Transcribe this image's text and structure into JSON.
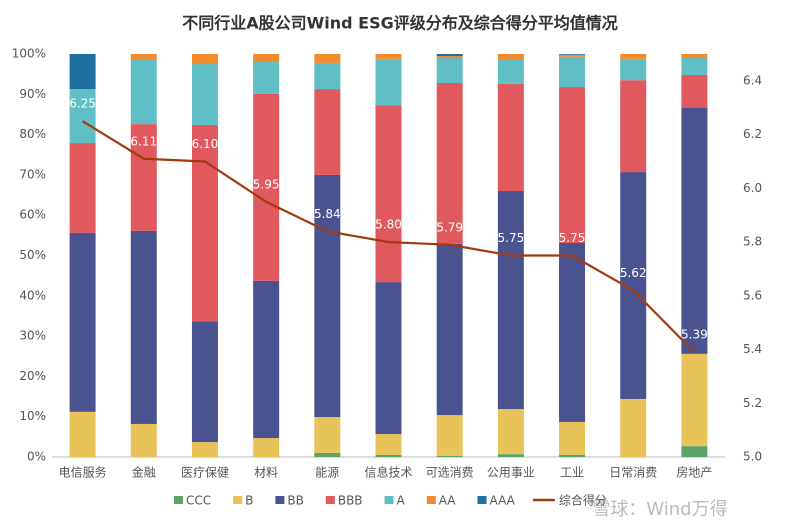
{
  "chart_data": {
    "type": "stacked-bar-line",
    "title": "不同行业A股公司Wind ESG评级分布及综合得分平均值情况",
    "categories": [
      "电信服务",
      "金融",
      "医疗保健",
      "材料",
      "能源",
      "信息技术",
      "可选消费",
      "公用事业",
      "工业",
      "日常消费",
      "房地产"
    ],
    "series": [
      {
        "name": "CCC",
        "color": "#5aa469",
        "values": [
          0,
          0,
          0,
          0,
          1.0,
          0.5,
          0.3,
          0.7,
          0.5,
          0,
          2.7
        ]
      },
      {
        "name": "B",
        "color": "#e8c35a",
        "values": [
          11.2,
          8.2,
          3.7,
          4.7,
          8.9,
          5.2,
          10.1,
          11.2,
          8.2,
          14.4,
          22.9
        ]
      },
      {
        "name": "BB",
        "color": "#4a538f",
        "values": [
          44.4,
          47.9,
          30.0,
          39.0,
          60.1,
          37.7,
          42.5,
          54.1,
          44.4,
          56.3,
          61.0
        ]
      },
      {
        "name": "BBB",
        "color": "#e0595d",
        "values": [
          22.3,
          26.5,
          48.7,
          46.4,
          21.3,
          43.9,
          39.9,
          26.6,
          38.7,
          22.8,
          8.2
        ]
      },
      {
        "name": "A",
        "color": "#5fbfc4",
        "values": [
          13.4,
          15.9,
          15.1,
          7.9,
          6.5,
          11.5,
          6.2,
          5.9,
          7.5,
          5.3,
          4.2
        ]
      },
      {
        "name": "AA",
        "color": "#f28b2c",
        "values": [
          0,
          1.5,
          2.5,
          2.0,
          2.2,
          1.2,
          0.5,
          1.5,
          0.5,
          1.2,
          1.0
        ]
      },
      {
        "name": "AAA",
        "color": "#1f6fa0",
        "values": [
          8.7,
          0,
          0,
          0,
          0,
          0,
          0.5,
          0,
          0.2,
          0,
          0
        ]
      },
      {
        "name": "综合得分",
        "color": "#a23b12",
        "axis": "y2",
        "type": "line",
        "values": [
          6.25,
          6.11,
          6.1,
          5.95,
          5.84,
          5.8,
          5.79,
          5.75,
          5.75,
          5.62,
          5.39
        ],
        "value_labels": [
          "6.25",
          "6.11",
          "6.10",
          "5.95",
          "5.84",
          "5.80",
          "5.79",
          "5.75",
          "5.75",
          "5.62",
          "5.39"
        ]
      }
    ],
    "ylim": [
      0,
      100
    ],
    "yticks": [
      {
        "value": 0,
        "label": "0%"
      },
      {
        "value": 10,
        "label": "10%"
      },
      {
        "value": 20,
        "label": "20%"
      },
      {
        "value": 30,
        "label": "30%"
      },
      {
        "value": 40,
        "label": "40%"
      },
      {
        "value": 50,
        "label": "50%"
      },
      {
        "value": 60,
        "label": "60%"
      },
      {
        "value": 70,
        "label": "70%"
      },
      {
        "value": 80,
        "label": "80%"
      },
      {
        "value": 90,
        "label": "90%"
      },
      {
        "value": 100,
        "label": "100%"
      }
    ],
    "y2lim": [
      5.0,
      6.5
    ],
    "y2ticks": [
      {
        "value": 5.0,
        "label": "5.0"
      },
      5.2,
      5.4,
      5.6,
      5.8,
      {
        "value": 6.0,
        "label": "6.0"
      },
      6.2,
      6.4
    ],
    "grid": false,
    "watermark": "雪球：Wind万得"
  }
}
